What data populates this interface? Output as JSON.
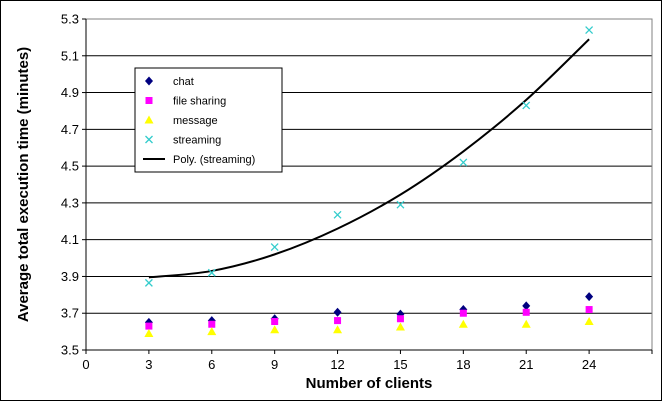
{
  "chart_data": {
    "type": "scatter",
    "title": "",
    "xlabel": "Number of clients",
    "ylabel": "Average total execution time (minutes)",
    "xlim": [
      0,
      27
    ],
    "ylim": [
      3.5,
      5.3
    ],
    "x_ticks": [
      "0",
      "3",
      "6",
      "9",
      "12",
      "15",
      "18",
      "21",
      "24"
    ],
    "y_ticks": [
      "3.5",
      "3.7",
      "3.9",
      "4.1",
      "4.3",
      "4.5",
      "4.7",
      "4.9",
      "5.1",
      "5.3"
    ],
    "x": [
      3,
      6,
      9,
      12,
      15,
      18,
      21,
      24
    ],
    "series": [
      {
        "name": "chat",
        "marker": "diamond",
        "color": "#000080",
        "values": [
          3.65,
          3.66,
          3.67,
          3.705,
          3.695,
          3.72,
          3.74,
          3.79
        ]
      },
      {
        "name": "file sharing",
        "marker": "square",
        "color": "#ff00ff",
        "values": [
          3.63,
          3.64,
          3.655,
          3.66,
          3.67,
          3.7,
          3.705,
          3.72
        ]
      },
      {
        "name": "message",
        "marker": "triangle",
        "color": "#ffff00",
        "values": [
          3.59,
          3.6,
          3.61,
          3.61,
          3.625,
          3.64,
          3.64,
          3.655
        ]
      },
      {
        "name": "streaming",
        "marker": "x",
        "color": "#33cccc",
        "values": [
          3.865,
          3.92,
          4.06,
          4.235,
          4.29,
          4.52,
          4.83,
          5.24
        ]
      }
    ],
    "trendline": {
      "name": "Poly. (streaming)",
      "color": "#000000",
      "x": [
        3,
        6,
        9,
        12,
        15,
        18,
        21,
        24
      ],
      "values": [
        3.895,
        3.93,
        4.02,
        4.16,
        4.345,
        4.58,
        4.86,
        5.19
      ]
    },
    "grid": "horizontal",
    "legend_position": "upper-left"
  }
}
